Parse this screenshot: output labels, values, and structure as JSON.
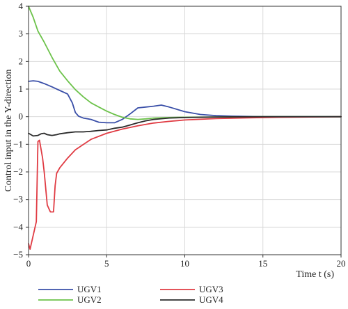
{
  "chart_data": {
    "type": "line",
    "title": "",
    "xlabel": "Time t (s)",
    "ylabel": "Control input in the Y-direction",
    "xlim": [
      0,
      20
    ],
    "ylim": [
      -5,
      4
    ],
    "xticks": [
      0,
      5,
      10,
      15,
      20
    ],
    "yticks": [
      4,
      3,
      2,
      1,
      0,
      -1,
      -2,
      -3,
      -4,
      -5
    ],
    "grid": true,
    "legend_position": "bottom",
    "series": [
      {
        "name": "UGV1",
        "color": "#3a4fa8",
        "x": [
          0,
          0.3,
          0.6,
          1.0,
          1.5,
          2.0,
          2.5,
          2.8,
          3.0,
          3.2,
          3.5,
          4.0,
          4.5,
          5.0,
          5.5,
          6.0,
          6.5,
          7.0,
          7.5,
          8.0,
          8.5,
          9.0,
          10.0,
          11.0,
          12.0,
          13.0,
          14.0,
          15.0,
          17.0,
          20.0
        ],
        "y": [
          1.28,
          1.3,
          1.28,
          1.2,
          1.08,
          0.95,
          0.82,
          0.5,
          0.15,
          0.02,
          -0.05,
          -0.1,
          -0.2,
          -0.22,
          -0.22,
          -0.1,
          0.1,
          0.32,
          0.35,
          0.38,
          0.42,
          0.35,
          0.18,
          0.08,
          0.04,
          0.02,
          0.01,
          0.0,
          0.0,
          0.0
        ]
      },
      {
        "name": "UGV2",
        "color": "#6cc24a",
        "x": [
          0,
          0.3,
          0.6,
          1.0,
          1.5,
          2.0,
          2.5,
          3.0,
          3.5,
          4.0,
          4.5,
          5.0,
          5.5,
          6.0,
          6.5,
          7.0,
          7.5,
          8.0,
          9.0,
          10.0,
          12.0,
          15.0,
          20.0
        ],
        "y": [
          4.0,
          3.6,
          3.1,
          2.7,
          2.15,
          1.65,
          1.3,
          0.98,
          0.72,
          0.5,
          0.35,
          0.2,
          0.08,
          -0.02,
          -0.08,
          -0.1,
          -0.08,
          -0.05,
          -0.03,
          -0.02,
          -0.01,
          0.0,
          0.0
        ]
      },
      {
        "name": "UGV3",
        "color": "#e03b43",
        "x": [
          0,
          0.1,
          0.5,
          0.6,
          0.7,
          0.9,
          1.0,
          1.2,
          1.4,
          1.6,
          1.7,
          1.8,
          2.0,
          2.5,
          3.0,
          4.0,
          5.0,
          6.0,
          7.0,
          8.0,
          9.0,
          10.0,
          12.0,
          14.0,
          16.0,
          18.0,
          20.0
        ],
        "y": [
          -4.6,
          -4.8,
          -3.8,
          -0.9,
          -0.85,
          -1.5,
          -2.0,
          -3.2,
          -3.45,
          -3.45,
          -2.5,
          -2.05,
          -1.85,
          -1.5,
          -1.2,
          -0.82,
          -0.6,
          -0.45,
          -0.33,
          -0.23,
          -0.17,
          -0.12,
          -0.07,
          -0.04,
          -0.02,
          -0.01,
          0.0
        ]
      },
      {
        "name": "UGV4",
        "color": "#2b2b2b",
        "x": [
          0,
          0.3,
          0.6,
          0.8,
          1.0,
          1.2,
          1.5,
          1.8,
          2.0,
          2.5,
          3.0,
          3.5,
          4.0,
          4.5,
          5.0,
          5.5,
          6.0,
          6.5,
          7.0,
          7.5,
          8.0,
          9.0,
          10.0,
          12.0,
          15.0,
          20.0
        ],
        "y": [
          -0.6,
          -0.7,
          -0.68,
          -0.62,
          -0.6,
          -0.65,
          -0.68,
          -0.65,
          -0.62,
          -0.58,
          -0.55,
          -0.55,
          -0.53,
          -0.5,
          -0.48,
          -0.42,
          -0.38,
          -0.3,
          -0.22,
          -0.15,
          -0.1,
          -0.05,
          -0.03,
          -0.01,
          0.0,
          0.0
        ]
      }
    ]
  }
}
